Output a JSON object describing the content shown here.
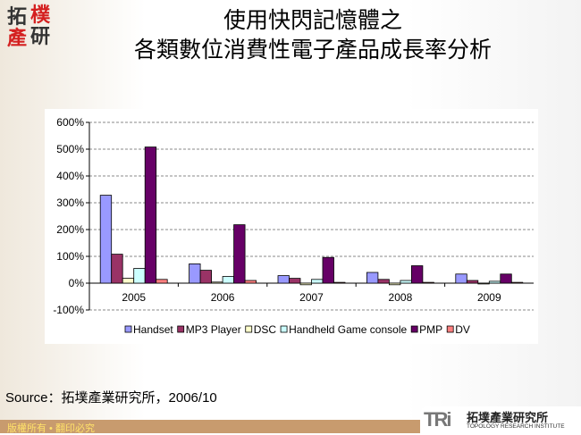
{
  "logo": {
    "chars": [
      "拓",
      "樸",
      "產",
      "研"
    ]
  },
  "title": {
    "line1": "使用快閃記憶體之",
    "line2": "各類數位消費性電子產品成長率分析"
  },
  "chart_data": {
    "type": "bar",
    "categories": [
      "2005",
      "2006",
      "2007",
      "2008",
      "2009"
    ],
    "ylim": [
      -100,
      600
    ],
    "yticks": [
      "-100%",
      "0%",
      "100%",
      "200%",
      "300%",
      "400%",
      "500%",
      "600%"
    ],
    "ytick_values": [
      -100,
      0,
      100,
      200,
      300,
      400,
      500,
      600
    ],
    "grid": true,
    "legend_position": "bottom",
    "series": [
      {
        "name": "Handset",
        "color": "#9999ff",
        "values": [
          328,
          72,
          28,
          40,
          34
        ]
      },
      {
        "name": "MP3 Player",
        "color": "#993366",
        "values": [
          108,
          48,
          18,
          14,
          10
        ]
      },
      {
        "name": "DSC",
        "color": "#ffffcc",
        "values": [
          18,
          4,
          -6,
          -6,
          -3
        ]
      },
      {
        "name": "Handheld Game console",
        "color": "#ccffff",
        "values": [
          55,
          25,
          14,
          10,
          7
        ]
      },
      {
        "name": "PMP",
        "color": "#660066",
        "values": [
          508,
          218,
          96,
          65,
          34
        ]
      },
      {
        "name": "DV",
        "color": "#ff8080",
        "values": [
          14,
          10,
          3,
          3,
          3
        ]
      }
    ]
  },
  "source": "Source：拓墣產業研究所，2006/10",
  "footer": {
    "copyright": "版權所有 • 翻印必究",
    "brand_mark": "TRi",
    "brand_cn": "拓墣產業研究所",
    "brand_en": "TOPOLOGY RESEARCH INSTITUTE"
  }
}
